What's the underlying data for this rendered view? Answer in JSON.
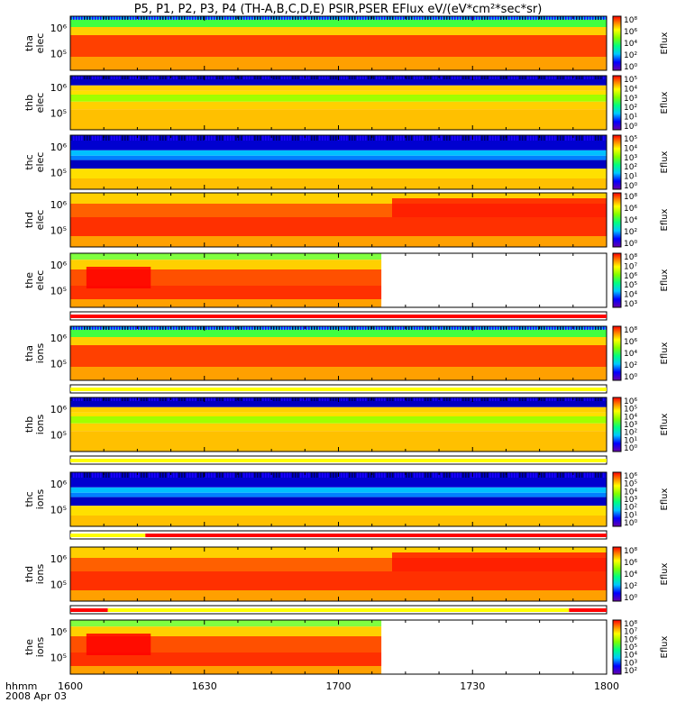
{
  "title": "P5, P1, P2, P3, P4 (TH-A,B,C,D,E) PSIR,PSER EFlux eV/(eV*cm²*sec*sr)",
  "colorbar_label": "Eflux",
  "time_axis": {
    "label": "hhmm",
    "date": "2008 Apr 03",
    "ticks": [
      "1600",
      "1630",
      "1700",
      "1730",
      "1800"
    ]
  },
  "chart_data": {
    "type": "heatmap",
    "xlim": [
      "16:00",
      "18:00"
    ],
    "panels": [
      {
        "probe": "tha",
        "species": "elec",
        "y_ticks": [
          "10⁶",
          "10⁵"
        ],
        "cbar_ticks": [
          "10⁸",
          "10⁶",
          "10⁴",
          "10²",
          "10⁰"
        ],
        "pattern": "a"
      },
      {
        "probe": "thb",
        "species": "elec",
        "y_ticks": [
          "10⁶",
          "10⁵"
        ],
        "cbar_ticks": [
          "10⁵",
          "10⁴",
          "10³",
          "10²",
          "10¹",
          "10⁰"
        ],
        "pattern": "b"
      },
      {
        "probe": "thc",
        "species": "elec",
        "y_ticks": [
          "10⁶",
          "10⁵"
        ],
        "cbar_ticks": [
          "10⁵",
          "10⁴",
          "10³",
          "10²",
          "10¹",
          "10⁰"
        ],
        "pattern": "c"
      },
      {
        "probe": "thd",
        "species": "elec",
        "y_ticks": [
          "10⁶",
          "10⁵"
        ],
        "cbar_ticks": [
          "10⁸",
          "10⁶",
          "10⁴",
          "10²",
          "10⁰"
        ],
        "pattern": "d"
      },
      {
        "probe": "the",
        "species": "elec",
        "y_ticks": [
          "10⁶",
          "10⁵"
        ],
        "cbar_ticks": [
          "10⁸",
          "10⁷",
          "10⁶",
          "10⁵",
          "10⁴",
          "10³"
        ],
        "pattern": "e"
      },
      {
        "probe": "tha",
        "species": "ions",
        "y_ticks": [
          "10⁶",
          "10⁵"
        ],
        "cbar_ticks": [
          "10⁸",
          "10⁶",
          "10⁴",
          "10²",
          "10⁰"
        ],
        "pattern": "a"
      },
      {
        "probe": "thb",
        "species": "ions",
        "y_ticks": [
          "10⁶",
          "10⁵"
        ],
        "cbar_ticks": [
          "10⁶",
          "10⁵",
          "10⁴",
          "10³",
          "10²",
          "10¹",
          "10⁰"
        ],
        "pattern": "b"
      },
      {
        "probe": "thc",
        "species": "ions",
        "y_ticks": [
          "10⁶",
          "10⁵"
        ],
        "cbar_ticks": [
          "10⁶",
          "10⁵",
          "10⁴",
          "10³",
          "10²",
          "10¹",
          "10⁰"
        ],
        "pattern": "c"
      },
      {
        "probe": "thd",
        "species": "ions",
        "y_ticks": [
          "10⁶",
          "10⁵"
        ],
        "cbar_ticks": [
          "10⁸",
          "10⁶",
          "10⁴",
          "10²",
          "10⁰"
        ],
        "pattern": "d"
      },
      {
        "probe": "the",
        "species": "ions",
        "y_ticks": [
          "10⁶",
          "10⁵"
        ],
        "cbar_ticks": [
          "10⁸",
          "10⁷",
          "10⁶",
          "10⁵",
          "10⁴",
          "10³",
          "10²"
        ],
        "pattern": "e"
      }
    ],
    "mode_bars": [
      {
        "after_panel": 4,
        "segments": [
          {
            "from": 0,
            "to": 1,
            "color": "#ff0000"
          }
        ]
      },
      {
        "after_panel": 5,
        "segments": [
          {
            "from": 0,
            "to": 1,
            "color": "#ffff00"
          }
        ]
      },
      {
        "after_panel": 6,
        "segments": [
          {
            "from": 0,
            "to": 1,
            "color": "#ffff00"
          }
        ]
      },
      {
        "after_panel": 7,
        "segments": [
          {
            "from": 0,
            "to": 0.14,
            "color": "#ffff00"
          },
          {
            "from": 0.14,
            "to": 1,
            "color": "#ff0000"
          }
        ]
      },
      {
        "after_panel": 8,
        "segments": [
          {
            "from": 0,
            "to": 0.07,
            "color": "#ff0000"
          },
          {
            "from": 0.07,
            "to": 0.93,
            "color": "#ffff00"
          },
          {
            "from": 0.93,
            "to": 1,
            "color": "#ff0000"
          }
        ]
      }
    ],
    "data_end_fraction_the": 0.58
  }
}
